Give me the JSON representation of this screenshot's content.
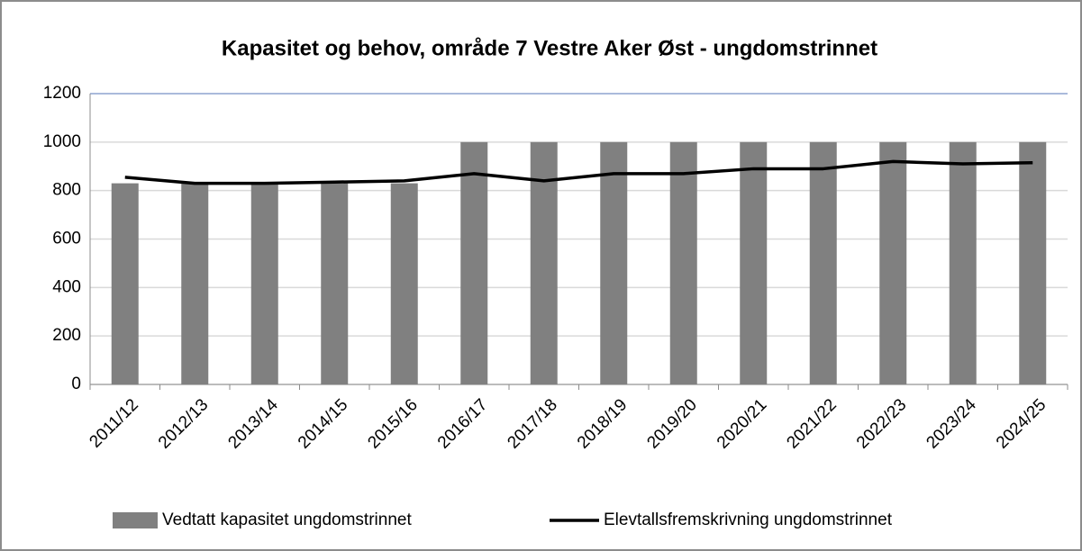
{
  "chart_data": {
    "type": "bar",
    "title": "Kapasitet og behov, område 7 Vestre Aker Øst - ungdomstrinnet",
    "categories": [
      "2011/12",
      "2012/13",
      "2013/14",
      "2014/15",
      "2015/16",
      "2016/17",
      "2017/18",
      "2018/19",
      "2019/20",
      "2020/21",
      "2021/22",
      "2022/23",
      "2023/24",
      "2024/25"
    ],
    "series": [
      {
        "name": "Vedtatt kapasitet ungdomstrinnet",
        "type": "bar",
        "color": "#808080",
        "values": [
          830,
          830,
          830,
          830,
          830,
          1000,
          1000,
          1000,
          1000,
          1000,
          1000,
          1000,
          1000,
          1000
        ]
      },
      {
        "name": "Elevtallsfremskrivning ungdomstrinnet",
        "type": "line",
        "color": "#000000",
        "values": [
          855,
          830,
          830,
          835,
          840,
          870,
          840,
          870,
          870,
          890,
          890,
          920,
          910,
          915
        ]
      }
    ],
    "ylim": [
      0,
      1200
    ],
    "yticks": [
      0,
      200,
      400,
      600,
      800,
      1000,
      1200
    ],
    "grid": true
  }
}
